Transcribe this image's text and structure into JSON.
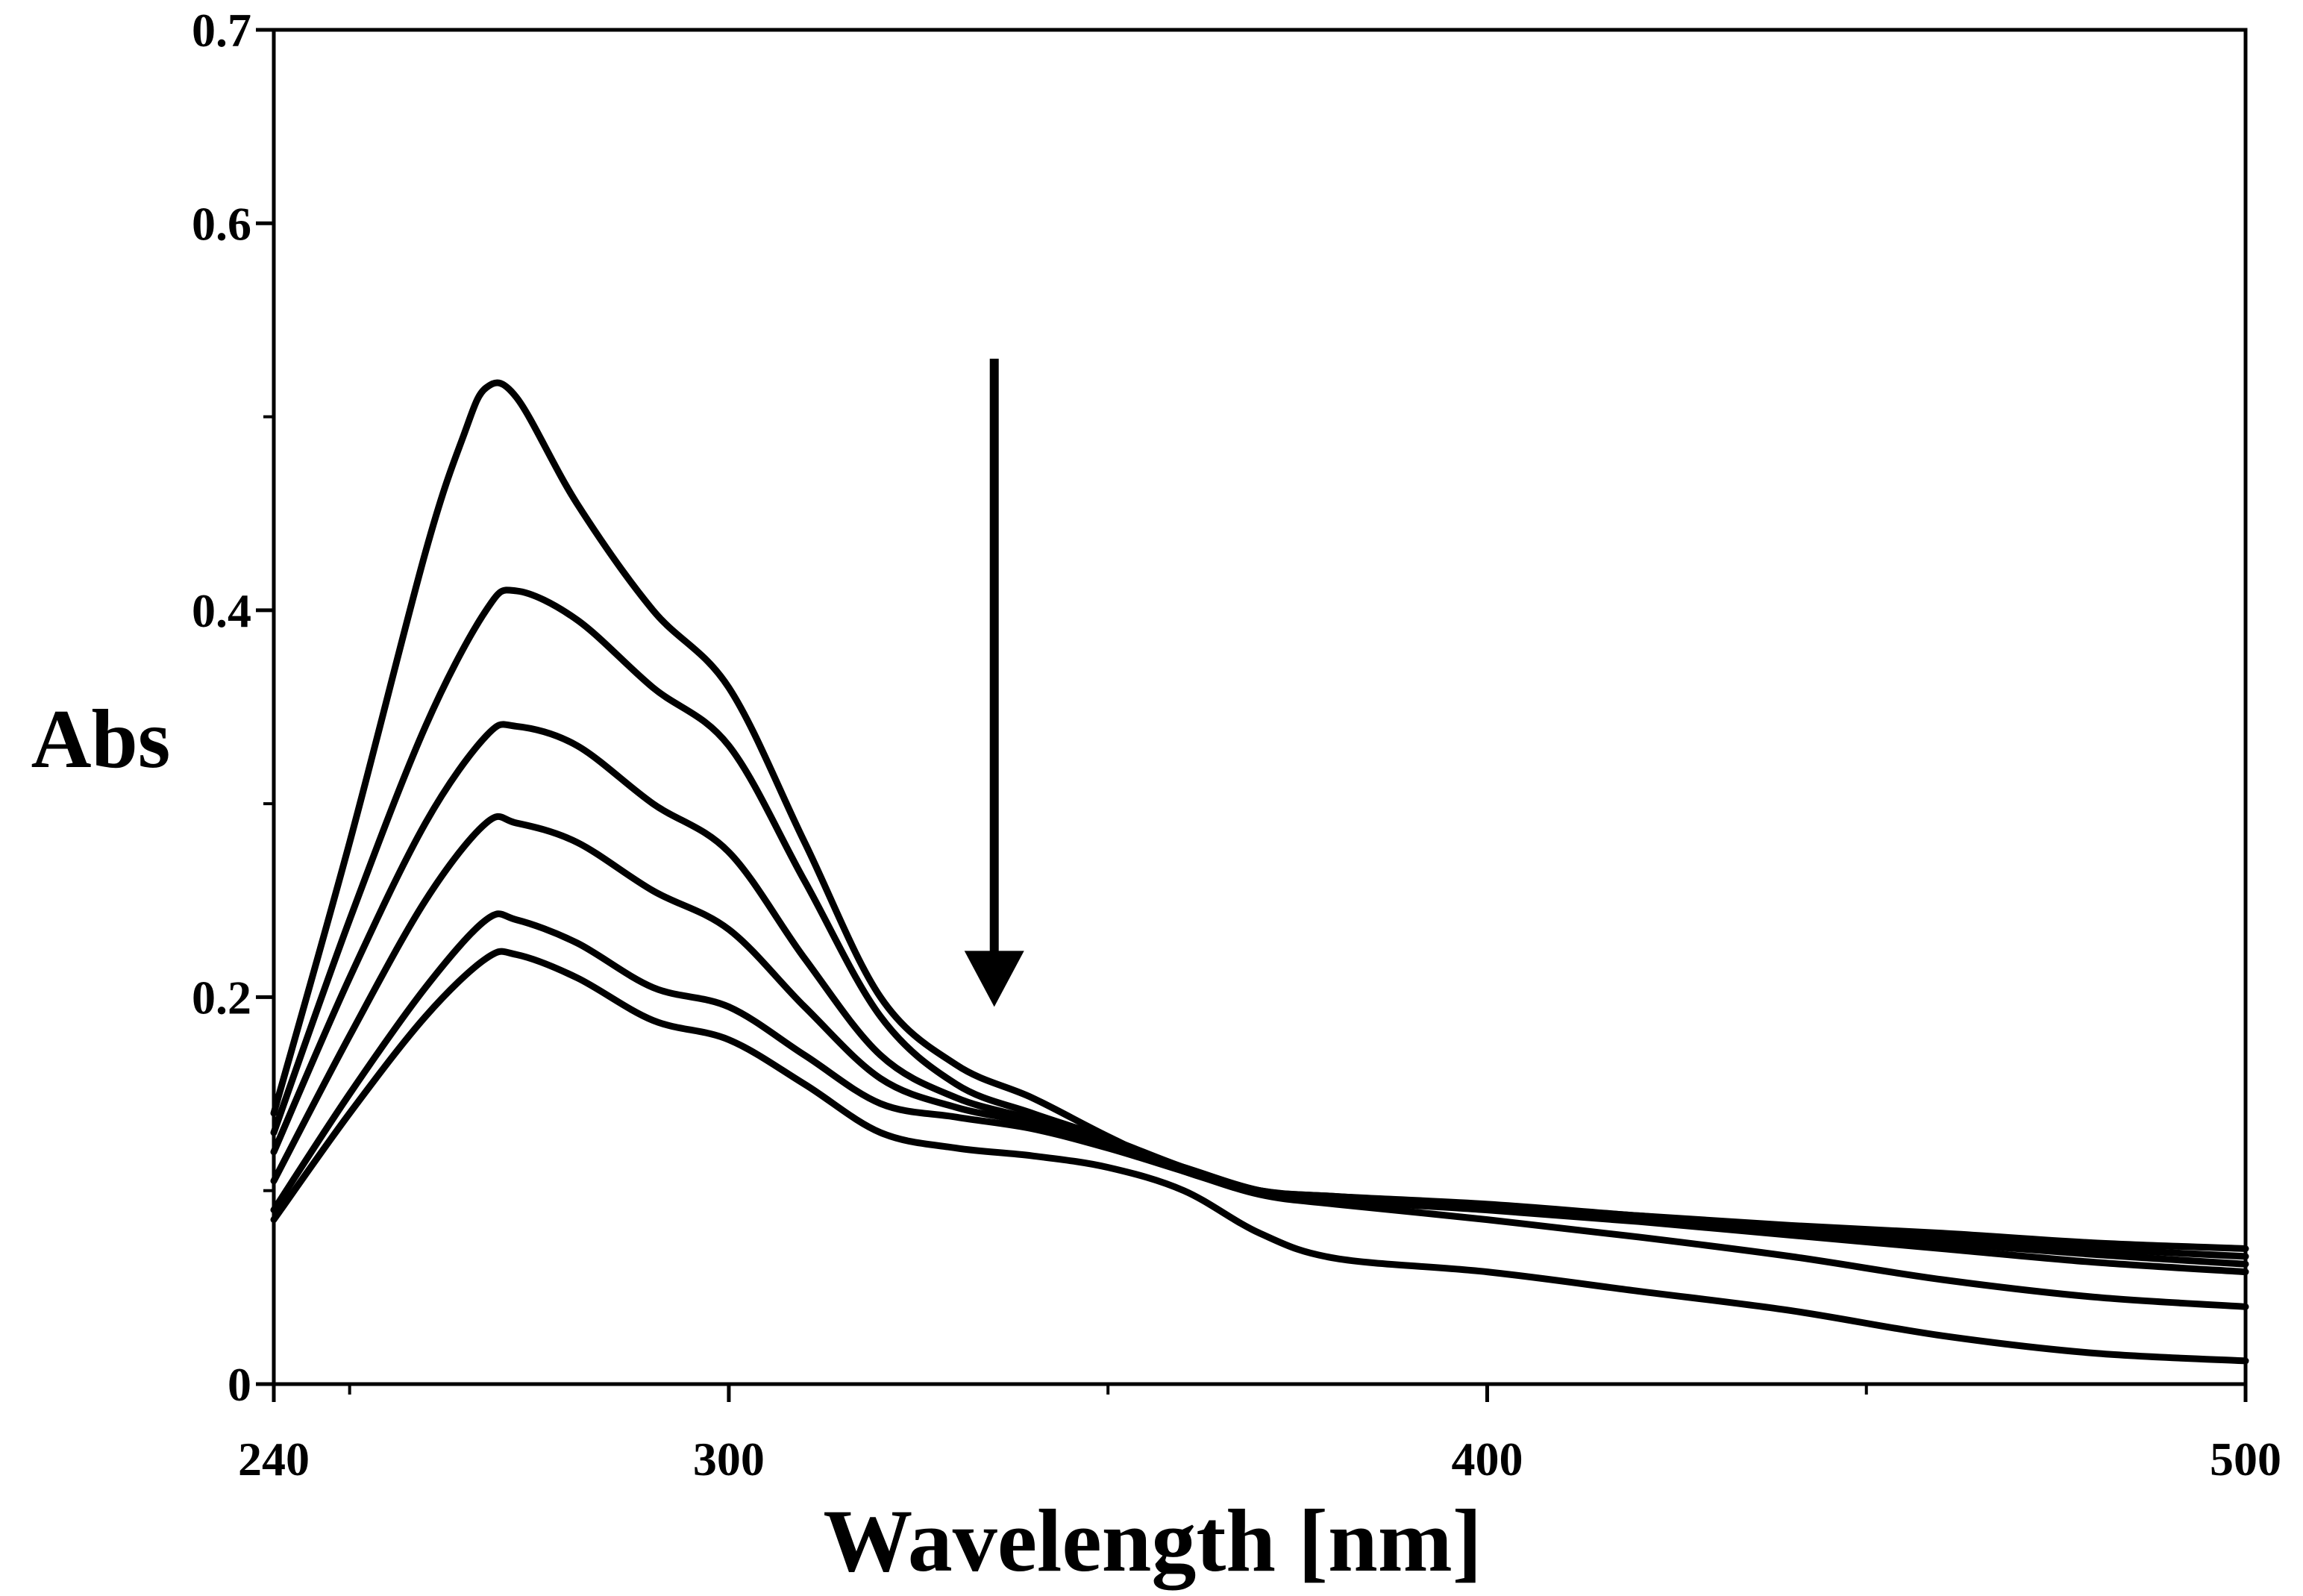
{
  "chart_data": {
    "type": "line",
    "title": "",
    "xlabel": "Wavelength [nm]",
    "ylabel": "Abs",
    "xlim": [
      240,
      500
    ],
    "ylim": [
      0,
      0.7
    ],
    "x_ticks": [
      240,
      300,
      400,
      500
    ],
    "x_tick_labels": [
      "240",
      "300",
      "400",
      "500"
    ],
    "x_minor_ticks": [
      250,
      350,
      450
    ],
    "y_ticks": [
      0,
      0.2,
      0.4,
      0.6,
      0.7
    ],
    "y_tick_labels": [
      "0",
      "0.2",
      "0.4",
      "0.6",
      "0.7"
    ],
    "y_minor_ticks": [
      0.1,
      0.3,
      0.5
    ],
    "grid": false,
    "legend": "none",
    "annotations": [
      {
        "type": "arrow",
        "direction": "down",
        "x": 335,
        "y_start": 0.53,
        "y_end": 0.195
      }
    ],
    "series": [
      {
        "name": "curve-1",
        "x": [
          240,
          250,
          260,
          265,
          268,
          272,
          280,
          290,
          300,
          310,
          320,
          330,
          340,
          350,
          360,
          370,
          380,
          400,
          420,
          440,
          460,
          480,
          500
        ],
        "y": [
          0.14,
          0.28,
          0.43,
          0.49,
          0.515,
          0.51,
          0.455,
          0.4,
          0.36,
          0.28,
          0.2,
          0.165,
          0.148,
          0.128,
          0.11,
          0.1,
          0.097,
          0.093,
          0.087,
          0.082,
          0.078,
          0.073,
          0.07
        ]
      },
      {
        "name": "curve-2",
        "x": [
          240,
          250,
          260,
          268,
          272,
          280,
          290,
          300,
          310,
          320,
          330,
          340,
          350,
          360,
          370,
          380,
          400,
          420,
          440,
          460,
          480,
          500
        ],
        "y": [
          0.13,
          0.24,
          0.34,
          0.4,
          0.41,
          0.395,
          0.36,
          0.33,
          0.26,
          0.19,
          0.155,
          0.14,
          0.127,
          0.112,
          0.1,
          0.097,
          0.092,
          0.087,
          0.08,
          0.075,
          0.07,
          0.066
        ]
      },
      {
        "name": "curve-3",
        "x": [
          240,
          250,
          260,
          268,
          272,
          280,
          290,
          300,
          310,
          320,
          330,
          340,
          350,
          360,
          370,
          380,
          400,
          420,
          440,
          460,
          480,
          500
        ],
        "y": [
          0.12,
          0.21,
          0.29,
          0.335,
          0.34,
          0.33,
          0.3,
          0.275,
          0.22,
          0.17,
          0.148,
          0.137,
          0.125,
          0.112,
          0.1,
          0.096,
          0.091,
          0.085,
          0.079,
          0.073,
          0.067,
          0.062
        ]
      },
      {
        "name": "curve-4",
        "x": [
          240,
          250,
          260,
          268,
          272,
          280,
          290,
          300,
          310,
          320,
          330,
          340,
          350,
          360,
          370,
          380,
          400,
          420,
          440,
          460,
          480,
          500
        ],
        "y": [
          0.105,
          0.18,
          0.25,
          0.29,
          0.29,
          0.28,
          0.255,
          0.235,
          0.195,
          0.158,
          0.143,
          0.135,
          0.124,
          0.112,
          0.1,
          0.095,
          0.09,
          0.084,
          0.077,
          0.07,
          0.063,
          0.058
        ]
      },
      {
        "name": "curve-5",
        "x": [
          240,
          250,
          260,
          268,
          272,
          280,
          290,
          300,
          310,
          320,
          330,
          340,
          350,
          360,
          370,
          380,
          400,
          420,
          440,
          460,
          480,
          500
        ],
        "y": [
          0.09,
          0.15,
          0.205,
          0.24,
          0.24,
          0.228,
          0.205,
          0.195,
          0.17,
          0.145,
          0.138,
          0.132,
          0.122,
          0.11,
          0.098,
          0.093,
          0.085,
          0.076,
          0.066,
          0.054,
          0.045,
          0.04
        ]
      },
      {
        "name": "curve-6",
        "x": [
          240,
          250,
          260,
          268,
          272,
          280,
          290,
          300,
          310,
          320,
          330,
          340,
          350,
          360,
          370,
          380,
          400,
          420,
          440,
          460,
          480,
          500
        ],
        "y": [
          0.085,
          0.14,
          0.19,
          0.22,
          0.222,
          0.21,
          0.188,
          0.178,
          0.155,
          0.13,
          0.122,
          0.118,
          0.112,
          0.1,
          0.078,
          0.065,
          0.058,
          0.048,
          0.038,
          0.025,
          0.016,
          0.012
        ]
      }
    ]
  }
}
